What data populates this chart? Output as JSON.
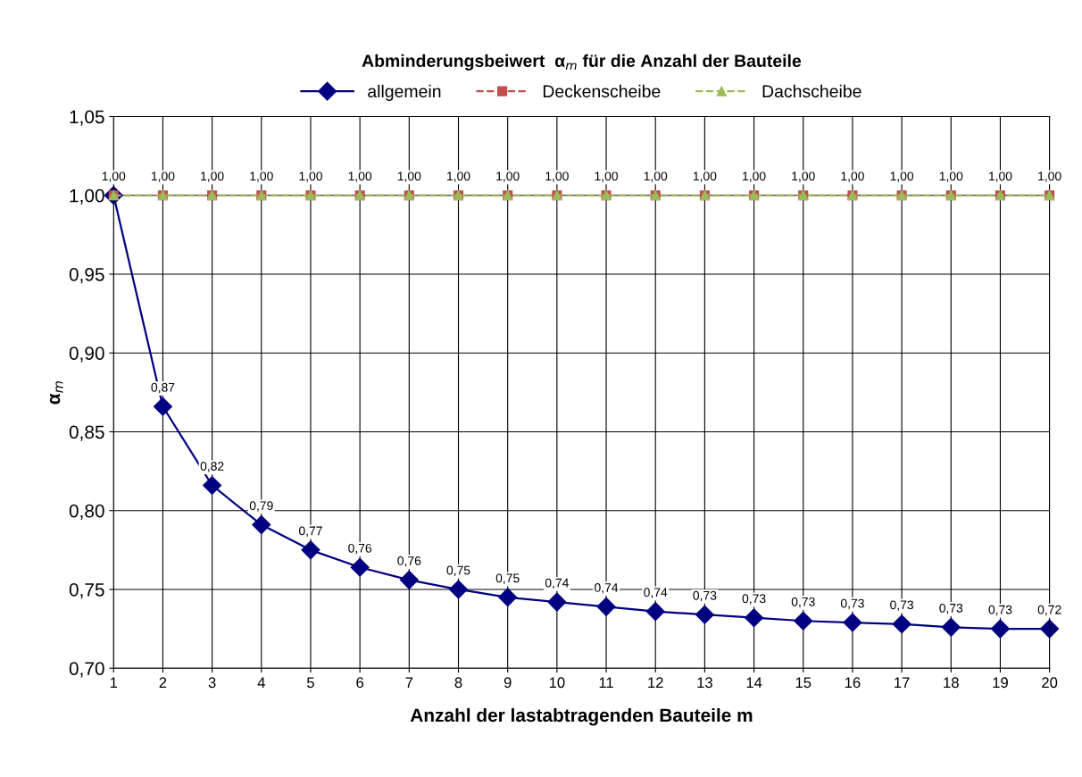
{
  "chart_data": {
    "type": "line",
    "title": "Abminderungsbeiwert  α$_{m}$ für die Anzahl der Bauteile",
    "xlabel": "Anzahl der lastabtragenden Bauteile m",
    "ylabel": "α$_{m}$",
    "x": [
      1,
      2,
      3,
      4,
      5,
      6,
      7,
      8,
      9,
      10,
      11,
      12,
      13,
      14,
      15,
      16,
      17,
      18,
      19,
      20
    ],
    "xlim": [
      1,
      20
    ],
    "xticks": [
      1,
      2,
      3,
      4,
      5,
      6,
      7,
      8,
      9,
      10,
      11,
      12,
      13,
      14,
      15,
      16,
      17,
      18,
      19,
      20
    ],
    "ylim": [
      0.7,
      1.05
    ],
    "yticks": [
      {
        "value": 0.7,
        "label": "0,70"
      },
      {
        "value": 0.75,
        "label": "0,75"
      },
      {
        "value": 0.8,
        "label": "0,80"
      },
      {
        "value": 0.85,
        "label": "0,85"
      },
      {
        "value": 0.9,
        "label": "0,90"
      },
      {
        "value": 0.95,
        "label": "0,95"
      },
      {
        "value": 1.0,
        "label": "1,00"
      },
      {
        "value": 1.05,
        "label": "1,05"
      }
    ],
    "grid": true,
    "legend": "top",
    "series": [
      {
        "name": "allgemein",
        "color": "#000080",
        "marker": "diamond",
        "line_style": "solid",
        "values": [
          1.0,
          0.866,
          0.816,
          0.791,
          0.775,
          0.764,
          0.756,
          0.75,
          0.745,
          0.742,
          0.739,
          0.736,
          0.734,
          0.732,
          0.73,
          0.729,
          0.728,
          0.726,
          0.725,
          0.725
        ],
        "value_labels": [
          null,
          "0,87",
          "0,82",
          "0,79",
          "0,77",
          "0,76",
          "0,76",
          "0,75",
          "0,75",
          "0,74",
          "0,74",
          "0,74",
          "0,73",
          "0,73",
          "0,73",
          "0,73",
          "0,73",
          "0,73",
          "0,73",
          "0,72"
        ]
      },
      {
        "name": "Deckenscheibe",
        "color": "#c0504d",
        "marker": "square",
        "line_style": "dashed",
        "values": [
          1,
          1,
          1,
          1,
          1,
          1,
          1,
          1,
          1,
          1,
          1,
          1,
          1,
          1,
          1,
          1,
          1,
          1,
          1,
          1
        ],
        "value_labels": [
          "1,00",
          "1,00",
          "1,00",
          "1,00",
          "1,00",
          "1,00",
          "1,00",
          "1,00",
          "1,00",
          "1,00",
          "1,00",
          "1,00",
          "1,00",
          "1,00",
          "1,00",
          "1,00",
          "1,00",
          "1,00",
          "1,00",
          "1,00"
        ]
      },
      {
        "name": "Dachscheibe",
        "color": "#9bbb59",
        "marker": "triangle",
        "line_style": "dashed",
        "values": [
          1,
          1,
          1,
          1,
          1,
          1,
          1,
          1,
          1,
          1,
          1,
          1,
          1,
          1,
          1,
          1,
          1,
          1,
          1,
          1
        ]
      }
    ]
  }
}
